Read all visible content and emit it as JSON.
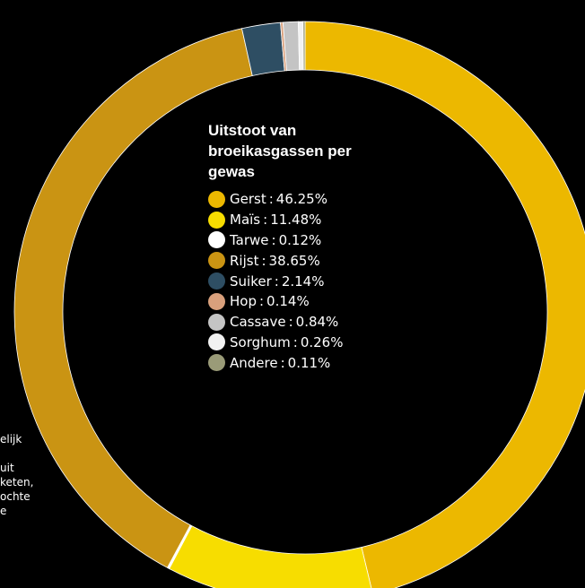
{
  "side_text": [
    "elijk",
    "",
    "uit",
    "keten,",
    "ochte",
    "e"
  ],
  "chart_data": {
    "type": "pie",
    "donut": true,
    "title_lines": [
      "Uitstoot van",
      "broeikasgassen per",
      "gewas"
    ],
    "separator": ":",
    "categories": [
      "Gerst",
      "Maïs",
      "Tarwe",
      "Rijst",
      "Suiker",
      "Hop",
      "Cassave",
      "Sorghum",
      "Andere"
    ],
    "labels": [
      "46.25%",
      "11.48%",
      "0.12%",
      "38.65%",
      "2.14%",
      "0.14%",
      "0.84%",
      "0.26%",
      "0.11%"
    ],
    "values": [
      46.25,
      11.48,
      0.12,
      38.65,
      2.14,
      0.14,
      0.84,
      0.26,
      0.11
    ],
    "colors": [
      "#ecb800",
      "#f7dd00",
      "#ffffff",
      "#ca9413",
      "#2e4e63",
      "#d9a07c",
      "#c4c4c4",
      "#f2f2f2",
      "#9a9b78"
    ],
    "legend": "center"
  }
}
